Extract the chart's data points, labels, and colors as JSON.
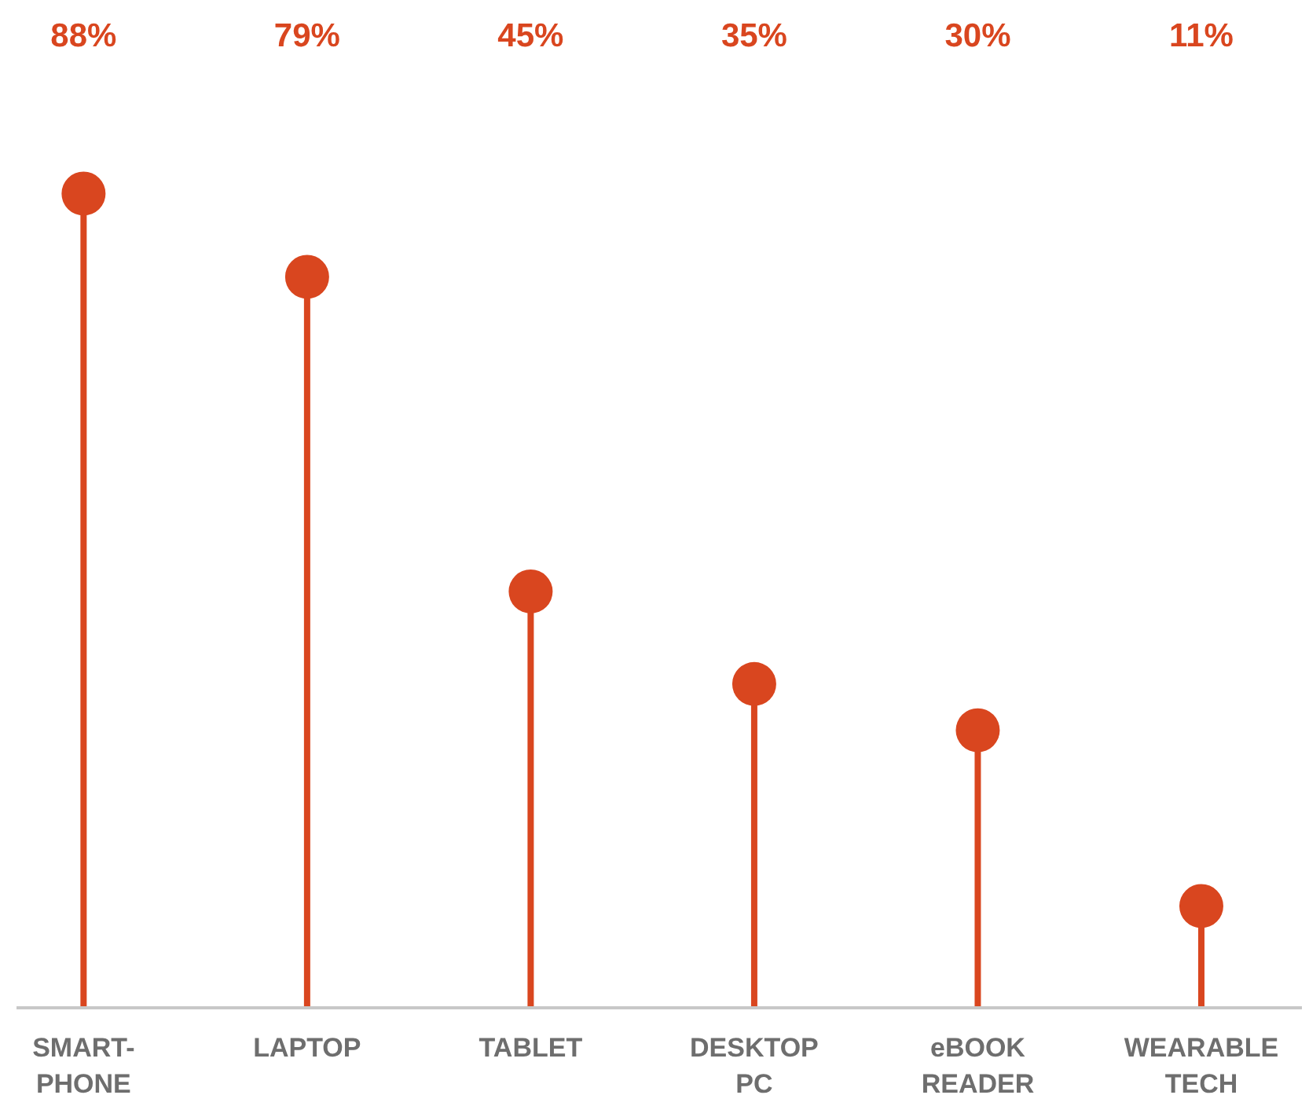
{
  "chart_data": {
    "type": "lollipop",
    "categories": [
      "SMART-\nPHONE",
      "LAPTOP",
      "TABLET",
      "DESKTOP\nPC",
      "eBOOK\nREADER",
      "WEARABLE\nTECH"
    ],
    "values": [
      88,
      79,
      45,
      35,
      30,
      11
    ],
    "value_labels": [
      "88%",
      "79%",
      "45%",
      "35%",
      "30%",
      "11%"
    ],
    "color": "#d9461f",
    "marker": "circle",
    "tick_labels": "x"
  }
}
